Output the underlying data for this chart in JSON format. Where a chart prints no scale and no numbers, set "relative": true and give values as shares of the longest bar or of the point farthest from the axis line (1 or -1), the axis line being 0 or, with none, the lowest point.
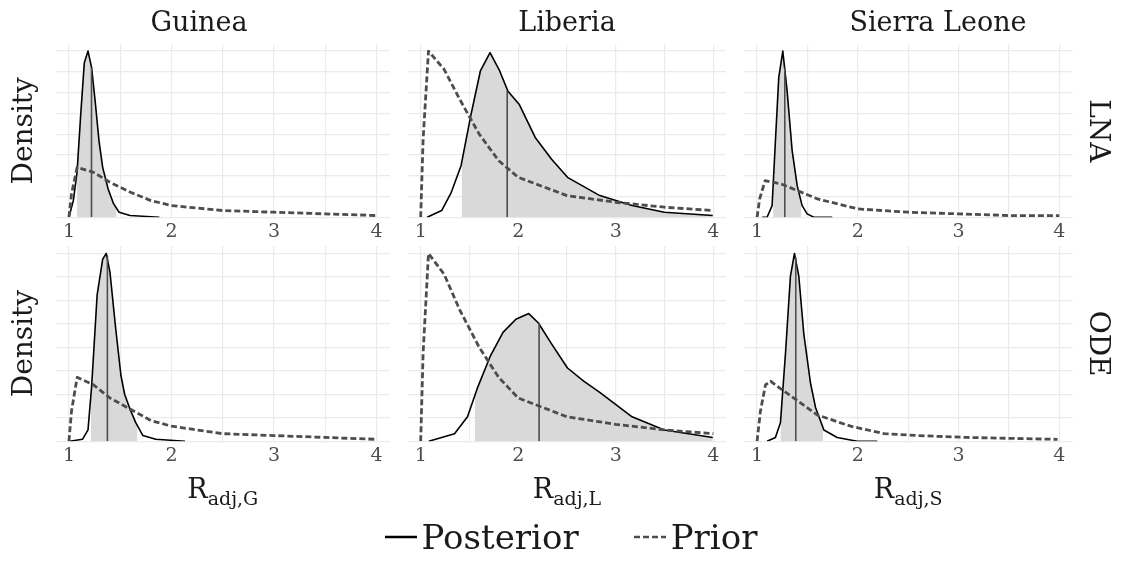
{
  "chart_data": [
    {
      "type": "line",
      "title": "Guinea",
      "ylabel": "Density",
      "relative": true,
      "grid": true,
      "tick_labels": "x",
      "legend": "bottom",
      "xlim": [
        0.87,
        4.13
      ],
      "xticks": [
        1,
        {
          "value": 1.5,
          "label": null
        },
        2,
        {
          "value": 2.5,
          "label": null
        },
        3,
        {
          "value": 3.5,
          "label": null
        },
        4
      ],
      "series": [
        {
          "type": "area",
          "color": "#d9d9d9",
          "x": [
            1.079,
            1.114,
            1.15,
            1.186,
            1.221,
            1.257,
            1.293,
            1.329,
            1.382,
            1.436,
            1.464
          ],
          "values": [
            0.27,
            0.61,
            0.93,
            1,
            0.9,
            0.69,
            0.46,
            0.3,
            0.17,
            0.08,
            0.05
          ]
        },
        {
          "name": "Posterior",
          "color": "#000000",
          "x": [
            1.0,
            1.043,
            1.079,
            1.114,
            1.15,
            1.186,
            1.221,
            1.257,
            1.293,
            1.329,
            1.382,
            1.436,
            1.489,
            1.596,
            1.882
          ],
          "values": [
            0,
            0.1,
            0.27,
            0.61,
            0.93,
            1,
            0.9,
            0.69,
            0.46,
            0.3,
            0.17,
            0.08,
            0.03,
            0.01,
            0
          ]
        },
        {
          "color": "#4d4d4d",
          "x": [
            1.22,
            1.22
          ],
          "values": [
            0,
            0.9
          ]
        },
        {
          "name": "Prior",
          "color": "#4d4d4d",
          "line_style": "dashed",
          "x": [
            1.0,
            1.025,
            1.08,
            1.24,
            1.4,
            1.6,
            1.8,
            2.0,
            2.5,
            3.0,
            3.5,
            4.0
          ],
          "values": [
            0,
            0.14,
            0.3,
            0.27,
            0.21,
            0.15,
            0.1,
            0.07,
            0.04,
            0.03,
            0.02,
            0.01
          ]
        }
      ]
    },
    {
      "type": "line",
      "title": "Liberia",
      "relative": true,
      "grid": true,
      "tick_labels": "x",
      "xlim": [
        0.87,
        4.13
      ],
      "xticks": [
        1,
        {
          "value": 1.5,
          "label": null
        },
        2,
        {
          "value": 2.5,
          "label": null
        },
        3,
        {
          "value": 3.5,
          "label": null
        },
        4
      ],
      "series": [
        {
          "type": "area",
          "color": "#d9d9d9",
          "x": [
            1.42,
            1.513,
            1.612,
            1.711,
            1.81,
            1.893,
            2.009,
            2.174,
            2.34,
            2.505,
            2.836,
            3.167,
            3.498,
            3.994
          ],
          "values": [
            0.32,
            0.61,
            0.88,
            0.99,
            0.88,
            0.76,
            0.68,
            0.48,
            0.35,
            0.24,
            0.13,
            0.07,
            0.03,
            0.01
          ]
        },
        {
          "color": "#000000",
          "x": [
            1.066,
            1.215,
            1.314,
            1.414,
            1.513,
            1.612,
            1.711,
            1.81,
            1.893,
            2.009,
            2.174,
            2.34,
            2.505,
            2.836,
            3.167,
            3.498,
            3.994
          ],
          "values": [
            0,
            0.04,
            0.15,
            0.31,
            0.61,
            0.88,
            0.99,
            0.88,
            0.76,
            0.68,
            0.48,
            0.35,
            0.24,
            0.13,
            0.07,
            0.03,
            0.01
          ]
        },
        {
          "color": "#4d4d4d",
          "x": [
            1.887,
            1.887
          ],
          "values": [
            0,
            0.76
          ]
        },
        {
          "color": "#4d4d4d",
          "line_style": "dashed",
          "x": [
            1.0,
            1.025,
            1.08,
            1.24,
            1.4,
            1.6,
            1.8,
            2.0,
            2.5,
            3.0,
            3.5,
            4.0
          ],
          "values": [
            0,
            0.47,
            1,
            0.89,
            0.71,
            0.5,
            0.34,
            0.24,
            0.13,
            0.09,
            0.06,
            0.04
          ]
        }
      ]
    },
    {
      "type": "line",
      "title": "Sierra Leone",
      "y2label": "LNA",
      "relative": true,
      "grid": true,
      "tick_labels": "x",
      "xlim": [
        0.87,
        4.13
      ],
      "xticks": [
        1,
        {
          "value": 1.5,
          "label": null
        },
        2,
        {
          "value": 2.5,
          "label": null
        },
        3,
        {
          "value": 3.5,
          "label": null
        },
        4
      ],
      "series": [
        {
          "type": "area",
          "color": "#d9d9d9",
          "x": [
            1.159,
            1.182,
            1.215,
            1.255,
            1.298,
            1.348,
            1.398,
            1.438
          ],
          "values": [
            0.15,
            0.46,
            0.84,
            1,
            0.76,
            0.4,
            0.19,
            0.09
          ]
        },
        {
          "color": "#000000",
          "x": [
            1.05,
            1.099,
            1.149,
            1.182,
            1.215,
            1.255,
            1.298,
            1.348,
            1.398,
            1.447,
            1.497,
            1.563,
            1.746
          ],
          "values": [
            0,
            0,
            0.07,
            0.46,
            0.84,
            1,
            0.76,
            0.4,
            0.19,
            0.07,
            0.02,
            0,
            0
          ]
        },
        {
          "color": "#4d4d4d",
          "x": [
            1.275,
            1.275
          ],
          "values": [
            0,
            0.9
          ]
        },
        {
          "color": "#4d4d4d",
          "line_style": "dashed",
          "x": [
            1.0,
            1.025,
            1.08,
            1.24,
            1.4,
            1.6,
            1.8,
            2.0,
            2.5,
            3.0,
            3.5,
            4.0
          ],
          "values": [
            0,
            0.11,
            0.22,
            0.2,
            0.16,
            0.11,
            0.08,
            0.05,
            0.03,
            0.02,
            0.01,
            0.01
          ]
        }
      ]
    },
    {
      "type": "line",
      "ylabel": "Density",
      "xlabel": "R$_{adj,G}$",
      "relative": true,
      "grid": true,
      "tick_labels": "x",
      "xlim": [
        0.87,
        4.13
      ],
      "xticks": [
        1,
        {
          "value": 1.5,
          "label": null
        },
        2,
        {
          "value": 2.5,
          "label": null
        },
        3,
        {
          "value": 3.5,
          "label": null
        },
        4
      ],
      "series": [
        {
          "type": "area",
          "color": "#d9d9d9",
          "x": [
            1.214,
            1.221,
            1.275,
            1.329,
            1.364,
            1.4,
            1.454,
            1.507,
            1.543,
            1.596,
            1.65,
            1.668
          ],
          "values": [
            0.25,
            0.29,
            0.78,
            0.97,
            1,
            0.9,
            0.61,
            0.35,
            0.25,
            0.17,
            0.1,
            0.08
          ]
        },
        {
          "color": "#000000",
          "x": [
            1.007,
            1.132,
            1.186,
            1.221,
            1.275,
            1.329,
            1.364,
            1.4,
            1.454,
            1.507,
            1.543,
            1.596,
            1.65,
            1.721,
            1.846,
            2.132
          ],
          "values": [
            0,
            0.01,
            0.06,
            0.29,
            0.78,
            0.97,
            1,
            0.9,
            0.61,
            0.35,
            0.25,
            0.17,
            0.1,
            0.03,
            0.01,
            0
          ]
        },
        {
          "color": "#4d4d4d",
          "x": [
            1.375,
            1.375
          ],
          "values": [
            0,
            0.99
          ]
        },
        {
          "color": "#4d4d4d",
          "line_style": "dashed",
          "x": [
            1.0,
            1.025,
            1.08,
            1.24,
            1.4,
            1.6,
            1.8,
            2.0,
            2.5,
            3.0,
            3.5,
            4.0
          ],
          "values": [
            0,
            0.16,
            0.34,
            0.3,
            0.23,
            0.17,
            0.11,
            0.08,
            0.04,
            0.03,
            0.02,
            0.01
          ]
        }
      ]
    },
    {
      "type": "line",
      "xlabel": "R$_{adj,L}$",
      "relative": true,
      "grid": true,
      "tick_labels": "x",
      "xlim": [
        0.87,
        4.13
      ],
      "xticks": [
        1,
        {
          "value": 1.5,
          "label": null
        },
        2,
        {
          "value": 2.5,
          "label": null
        },
        3,
        {
          "value": 3.5,
          "label": null
        },
        4
      ],
      "series": [
        {
          "type": "area",
          "color": "#d9d9d9",
          "x": [
            1.556,
            1.579,
            1.711,
            1.844,
            1.976,
            2.108,
            2.207,
            2.34,
            2.505,
            2.671,
            2.836,
            3.167,
            3.498,
            3.994
          ],
          "values": [
            0.26,
            0.28,
            0.45,
            0.58,
            0.65,
            0.68,
            0.63,
            0.52,
            0.39,
            0.32,
            0.26,
            0.13,
            0.06,
            0.02
          ]
        },
        {
          "color": "#000000",
          "x": [
            1.083,
            1.347,
            1.48,
            1.579,
            1.711,
            1.844,
            1.976,
            2.108,
            2.207,
            2.34,
            2.505,
            2.671,
            2.836,
            3.167,
            3.498,
            3.994
          ],
          "values": [
            0,
            0.04,
            0.13,
            0.28,
            0.45,
            0.58,
            0.65,
            0.68,
            0.63,
            0.52,
            0.39,
            0.32,
            0.26,
            0.13,
            0.06,
            0.02
          ]
        },
        {
          "color": "#4d4d4d",
          "x": [
            2.214,
            2.214
          ],
          "values": [
            0,
            0.63
          ]
        },
        {
          "color": "#4d4d4d",
          "line_style": "dashed",
          "x": [
            1.0,
            1.025,
            1.08,
            1.24,
            1.4,
            1.6,
            1.8,
            2.0,
            2.5,
            3.0,
            3.5,
            4.0
          ],
          "values": [
            0,
            0.47,
            1,
            0.89,
            0.7,
            0.5,
            0.34,
            0.23,
            0.13,
            0.09,
            0.06,
            0.04
          ]
        }
      ]
    },
    {
      "type": "line",
      "xlabel": "R$_{adj,S}$",
      "y2label": "ODE",
      "relative": true,
      "grid": true,
      "tick_labels": "x",
      "xlim": [
        0.87,
        4.13
      ],
      "xticks": [
        1,
        {
          "value": 1.5,
          "label": null
        },
        2,
        {
          "value": 2.5,
          "label": null
        },
        3,
        {
          "value": 3.5,
          "label": null
        },
        4
      ],
      "series": [
        {
          "type": "area",
          "color": "#d9d9d9",
          "x": [
            1.232,
            1.282,
            1.331,
            1.371,
            1.414,
            1.464,
            1.53,
            1.58,
            1.656
          ],
          "values": [
            0.1,
            0.47,
            0.88,
            1,
            0.88,
            0.57,
            0.31,
            0.18,
            0.07
          ]
        },
        {
          "color": "#000000",
          "x": [
            1.099,
            1.182,
            1.232,
            1.282,
            1.331,
            1.371,
            1.414,
            1.464,
            1.53,
            1.58,
            1.663,
            1.795,
            1.994,
            2.193
          ],
          "values": [
            0,
            0.02,
            0.1,
            0.47,
            0.88,
            1,
            0.88,
            0.57,
            0.31,
            0.18,
            0.06,
            0.02,
            0,
            0
          ]
        },
        {
          "color": "#4d4d4d",
          "x": [
            1.384,
            1.384
          ],
          "values": [
            0,
            0.98
          ]
        },
        {
          "color": "#4d4d4d",
          "line_style": "dashed",
          "x": [
            1.0,
            1.033,
            1.083,
            1.133,
            1.232,
            1.365,
            1.597,
            1.928,
            2.26,
            2.591,
            3.088,
            3.983
          ],
          "values": [
            0,
            0.16,
            0.3,
            0.32,
            0.28,
            0.23,
            0.14,
            0.08,
            0.04,
            0.03,
            0.02,
            0.01
          ]
        }
      ]
    }
  ]
}
